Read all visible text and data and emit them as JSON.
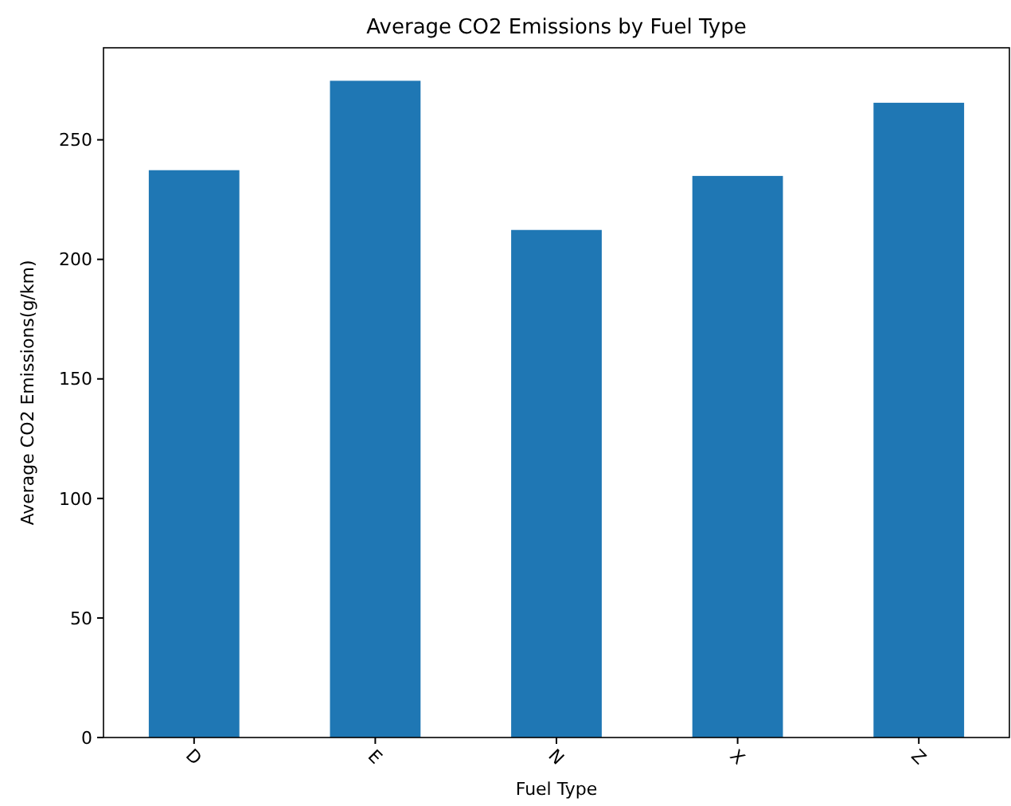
{
  "chart_data": {
    "type": "bar",
    "title": "Average CO2 Emissions by Fuel Type",
    "xlabel": "Fuel Type",
    "ylabel": "Average CO2 Emissions(g/km)",
    "categories": [
      "D",
      "E",
      "N",
      "X",
      "Z"
    ],
    "values": [
      237.3,
      274.7,
      212.3,
      234.9,
      265.5
    ],
    "color": "#1f77b4",
    "ylim": [
      0,
      288.5
    ],
    "yticks": [
      0,
      50,
      100,
      150,
      200,
      250
    ],
    "grid": false
  }
}
